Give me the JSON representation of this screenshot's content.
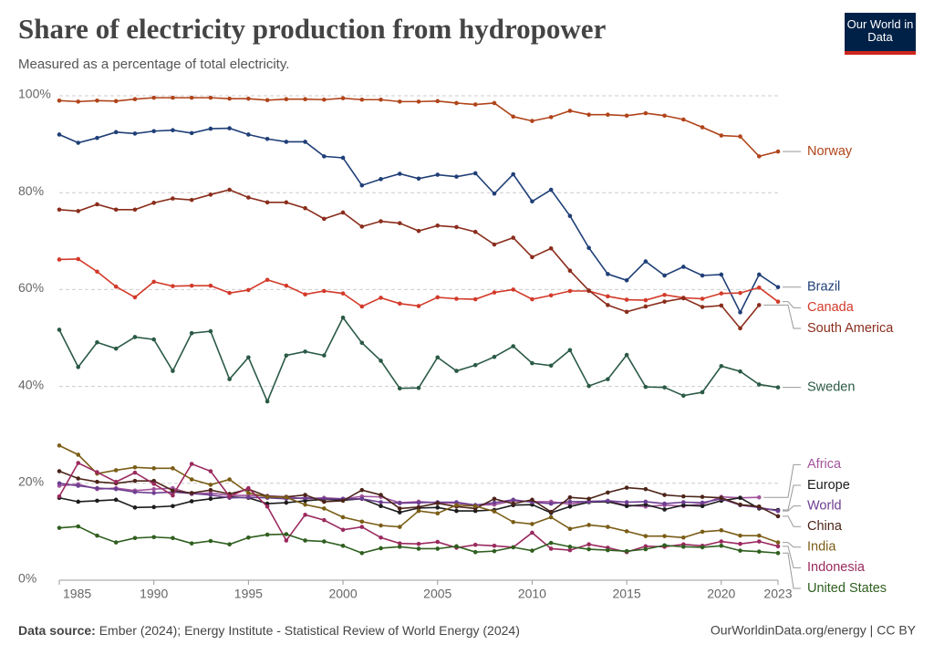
{
  "chart_data": {
    "type": "line",
    "title": "Share of electricity production from hydropower",
    "subtitle": "Measured as a percentage of total electricity.",
    "logo": "Our World in Data",
    "source_label": "Data source:",
    "source": "Ember (2024); Energy Institute - Statistical Review of World Energy (2024)",
    "credit": "OurWorldinData.org/energy | CC BY",
    "x": [
      1985,
      1986,
      1987,
      1988,
      1989,
      1990,
      1991,
      1992,
      1993,
      1994,
      1995,
      1996,
      1997,
      1998,
      1999,
      2000,
      2001,
      2002,
      2003,
      2004,
      2005,
      2006,
      2007,
      2008,
      2009,
      2010,
      2011,
      2012,
      2013,
      2014,
      2015,
      2016,
      2017,
      2018,
      2019,
      2020,
      2021,
      2022,
      2023
    ],
    "xlim": [
      1985,
      2023
    ],
    "xticks": [
      1985,
      1990,
      1995,
      2000,
      2005,
      2010,
      2015,
      2020,
      2023
    ],
    "ylim": [
      0,
      100
    ],
    "yticks": [
      {
        "value": 0,
        "label": "0%"
      },
      {
        "value": 20,
        "label": "20%"
      },
      {
        "value": 40,
        "label": "40%"
      },
      {
        "value": 60,
        "label": "60%"
      },
      {
        "value": 80,
        "label": "80%"
      },
      {
        "value": 100,
        "label": "100%"
      }
    ],
    "grid": true,
    "series": [
      {
        "name": "Norway",
        "color": "#b0441a",
        "values": [
          99.0,
          98.8,
          99.0,
          98.9,
          99.3,
          99.6,
          99.6,
          99.6,
          99.6,
          99.4,
          99.4,
          99.1,
          99.3,
          99.3,
          99.2,
          99.5,
          99.2,
          99.2,
          98.8,
          98.8,
          98.9,
          98.5,
          98.2,
          98.5,
          95.7,
          94.8,
          95.6,
          96.9,
          96.1,
          96.1,
          95.9,
          96.4,
          95.9,
          95.1,
          93.5,
          91.8,
          91.6,
          87.5,
          88.5
        ]
      },
      {
        "name": "Brazil",
        "color": "#1f3f77",
        "values": [
          92.0,
          90.3,
          91.3,
          92.5,
          92.2,
          92.7,
          92.9,
          92.3,
          93.2,
          93.3,
          92.0,
          91.1,
          90.5,
          90.5,
          87.5,
          87.2,
          81.5,
          82.8,
          83.9,
          82.9,
          83.7,
          83.3,
          84.0,
          79.8,
          83.8,
          78.2,
          80.6,
          75.2,
          68.6,
          63.2,
          61.9,
          65.8,
          62.9,
          64.7,
          62.9,
          63.1,
          55.3,
          63.1,
          60.5
        ]
      },
      {
        "name": "Canada",
        "color": "#d33a2a",
        "values": [
          66.2,
          66.3,
          63.7,
          60.6,
          58.4,
          61.6,
          60.7,
          60.8,
          60.8,
          59.3,
          59.9,
          62.0,
          60.8,
          59.0,
          59.7,
          59.2,
          56.5,
          58.3,
          57.1,
          56.6,
          58.4,
          58.1,
          58.0,
          59.4,
          60.0,
          58.0,
          58.8,
          59.7,
          59.7,
          58.6,
          57.9,
          57.8,
          58.9,
          58.3,
          58.1,
          59.2,
          59.3,
          60.4,
          57.5
        ]
      },
      {
        "name": "South America",
        "color": "#8a2d1c",
        "values": [
          76.5,
          76.2,
          77.6,
          76.5,
          76.5,
          77.9,
          78.8,
          78.5,
          79.6,
          80.6,
          79.0,
          78.0,
          78.0,
          76.8,
          74.6,
          75.9,
          73.0,
          74.1,
          73.7,
          72.1,
          73.2,
          72.9,
          71.9,
          69.3,
          70.7,
          66.7,
          68.5,
          63.9,
          59.8,
          56.8,
          55.4,
          56.5,
          57.5,
          58.2,
          56.4,
          56.7,
          52.0,
          56.8,
          null
        ]
      },
      {
        "name": "Sweden",
        "color": "#2a5a45",
        "values": [
          51.7,
          44.0,
          49.1,
          47.8,
          50.2,
          49.7,
          43.2,
          51.0,
          51.4,
          41.5,
          46.0,
          36.9,
          46.4,
          47.2,
          46.4,
          54.2,
          49.0,
          45.3,
          39.6,
          39.7,
          46.0,
          43.2,
          44.4,
          46.1,
          48.3,
          44.8,
          44.3,
          47.5,
          40.1,
          41.5,
          46.5,
          39.9,
          39.8,
          38.1,
          38.8,
          44.2,
          43.1,
          40.4,
          39.8
        ]
      },
      {
        "name": "Africa",
        "color": "#a2559c",
        "values": [
          19.5,
          19.8,
          18.8,
          19.0,
          18.5,
          18.8,
          19.0,
          17.8,
          18.0,
          17.5,
          17.5,
          17.4,
          17.2,
          16.8,
          17.0,
          16.8,
          17.3,
          17.2,
          16.0,
          16.2,
          16.0,
          15.9,
          15.5,
          15.6,
          16.4,
          16.2,
          16.2,
          15.7,
          16.3,
          16.3,
          15.5,
          15.2,
          15.5,
          15.3,
          15.7,
          17.2,
          17.0,
          17.1,
          null
        ]
      },
      {
        "name": "Europe",
        "color": "#1c1c1c",
        "values": [
          17.0,
          16.2,
          16.4,
          16.6,
          15.0,
          15.1,
          15.3,
          16.3,
          16.8,
          17.2,
          17.0,
          15.8,
          16.0,
          16.4,
          16.7,
          16.5,
          16.8,
          15.3,
          14.0,
          14.9,
          15.0,
          14.3,
          14.3,
          14.5,
          15.5,
          15.6,
          13.9,
          15.2,
          16.1,
          16.2,
          15.3,
          15.6,
          14.6,
          15.5,
          15.3,
          16.4,
          17.0,
          14.8,
          14.5
        ]
      },
      {
        "name": "World",
        "color": "#6d3e91",
        "values": [
          20.0,
          19.5,
          19.0,
          18.8,
          18.2,
          18.0,
          18.2,
          17.9,
          17.6,
          17.0,
          17.1,
          17.0,
          16.8,
          17.0,
          16.8,
          16.8,
          16.8,
          16.1,
          15.9,
          16.0,
          16.1,
          16.1,
          15.5,
          16.0,
          16.6,
          16.1,
          15.8,
          16.2,
          16.2,
          16.4,
          16.1,
          16.2,
          15.8,
          16.1,
          16.0,
          16.8,
          15.5,
          15.0,
          14.3
        ]
      },
      {
        "name": "China",
        "color": "#4c2419",
        "values": [
          22.5,
          21.0,
          20.3,
          20.0,
          20.5,
          20.5,
          18.5,
          18.0,
          18.6,
          17.8,
          18.8,
          17.3,
          17.2,
          17.6,
          16.2,
          16.4,
          18.6,
          17.6,
          14.8,
          15.1,
          15.9,
          15.2,
          14.8,
          16.8,
          15.8,
          16.6,
          14.1,
          17.1,
          16.8,
          18.1,
          19.1,
          18.8,
          17.6,
          17.3,
          17.2,
          17.0,
          15.6,
          15.2,
          13.2
        ]
      },
      {
        "name": "India",
        "color": "#7a5d16",
        "values": [
          27.8,
          25.9,
          22.0,
          22.7,
          23.3,
          23.1,
          23.1,
          20.8,
          19.7,
          20.8,
          18.0,
          17.2,
          17.1,
          15.6,
          14.8,
          13.0,
          12.1,
          11.3,
          11.0,
          14.3,
          13.8,
          15.5,
          15.3,
          14.2,
          12.0,
          11.6,
          13.0,
          10.6,
          11.4,
          11.0,
          10.1,
          9.1,
          9.1,
          8.8,
          10.0,
          10.3,
          9.2,
          9.2,
          7.8
        ]
      },
      {
        "name": "Indonesia",
        "color": "#9a2a5e",
        "values": [
          17.3,
          24.2,
          22.3,
          20.3,
          22.2,
          19.9,
          17.5,
          24.0,
          22.5,
          17.3,
          19.0,
          15.2,
          8.2,
          13.5,
          12.4,
          10.4,
          11.0,
          8.8,
          7.6,
          7.5,
          7.9,
          6.7,
          7.3,
          7.1,
          6.8,
          9.8,
          6.5,
          6.2,
          7.4,
          6.7,
          5.8,
          7.0,
          6.9,
          7.4,
          7.1,
          8.0,
          7.5,
          8.0,
          7.0
        ]
      },
      {
        "name": "United States",
        "color": "#2f5f1f",
        "values": [
          10.8,
          11.1,
          9.2,
          7.8,
          8.7,
          8.9,
          8.7,
          7.6,
          8.1,
          7.4,
          8.8,
          9.4,
          9.5,
          8.2,
          8.0,
          7.1,
          5.6,
          6.6,
          6.9,
          6.5,
          6.5,
          7.0,
          5.8,
          6.0,
          6.8,
          6.1,
          7.7,
          6.9,
          6.4,
          6.2,
          6.0,
          6.4,
          7.2,
          6.9,
          6.8,
          7.1,
          6.1,
          5.9,
          5.6
        ]
      }
    ]
  }
}
